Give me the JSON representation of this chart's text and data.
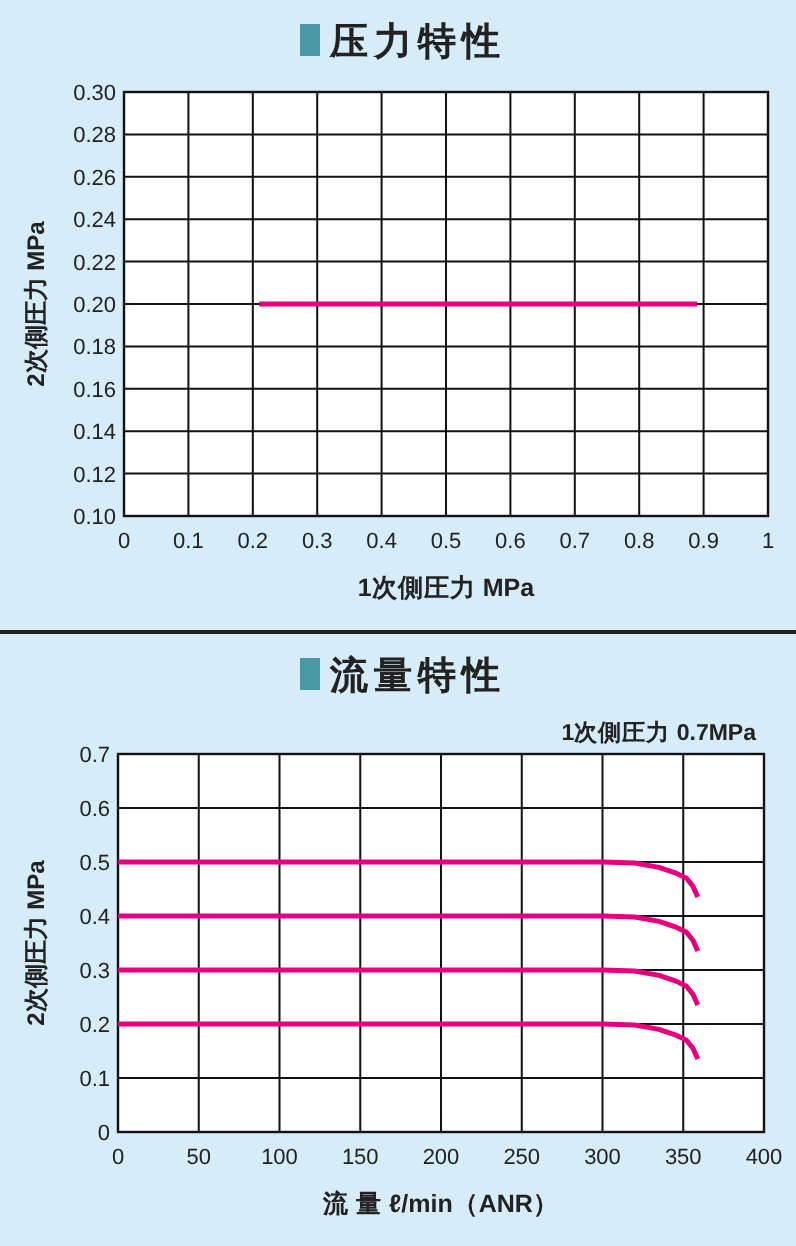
{
  "chart_data": [
    {
      "type": "line",
      "title": "压力特性",
      "xlabel": "1次側圧力  MPa",
      "ylabel": "2次側圧力 MPa",
      "xlim": [
        0,
        1
      ],
      "ylim": [
        0.1,
        0.3
      ],
      "xticks": [
        0,
        0.1,
        0.2,
        0.3,
        0.4,
        0.5,
        0.6,
        0.7,
        0.8,
        0.9,
        1
      ],
      "yticks": [
        {
          "value": 0.1,
          "label": "0.10"
        },
        {
          "value": 0.12,
          "label": "0.12"
        },
        {
          "value": 0.14,
          "label": "0.14"
        },
        {
          "value": 0.16,
          "label": "0.16"
        },
        {
          "value": 0.18,
          "label": "0.18"
        },
        {
          "value": 0.2,
          "label": "0.20"
        },
        {
          "value": 0.22,
          "label": "0.22"
        },
        {
          "value": 0.24,
          "label": "0.24"
        },
        {
          "value": 0.26,
          "label": "0.26"
        },
        {
          "value": 0.28,
          "label": "0.28"
        },
        {
          "value": 0.3,
          "label": "0.30"
        }
      ],
      "grid": true,
      "marker": "none",
      "line_style": "solid",
      "series": [
        {
          "color": "#e6007e",
          "x": [
            0.21,
            0.89
          ],
          "values": [
            0.2,
            0.2
          ]
        }
      ]
    },
    {
      "type": "line",
      "title": "流量特性",
      "subtitle": "1次側圧力 0.7MPa",
      "xlabel": "流 量 ℓ/min（ANR）",
      "ylabel": "2次側圧力 MPa",
      "xlim": [
        0,
        400
      ],
      "ylim": [
        0,
        0.7
      ],
      "xticks": [
        0,
        50,
        100,
        150,
        200,
        250,
        300,
        350,
        400
      ],
      "yticks": [
        0,
        0.1,
        0.2,
        0.3,
        0.4,
        0.5,
        0.6,
        0.7
      ],
      "grid": true,
      "marker": "none",
      "line_style": "solid",
      "series": [
        {
          "color": "#e6007e",
          "x": [
            0,
            300,
            320,
            335,
            345,
            352,
            356,
            359
          ],
          "values": [
            0.5,
            0.5,
            0.498,
            0.49,
            0.48,
            0.47,
            0.455,
            0.435
          ]
        },
        {
          "color": "#e6007e",
          "x": [
            0,
            300,
            320,
            335,
            345,
            352,
            356,
            359
          ],
          "values": [
            0.4,
            0.4,
            0.398,
            0.39,
            0.38,
            0.37,
            0.355,
            0.335
          ]
        },
        {
          "color": "#e6007e",
          "x": [
            0,
            300,
            320,
            335,
            345,
            352,
            356,
            359
          ],
          "values": [
            0.3,
            0.3,
            0.298,
            0.29,
            0.28,
            0.27,
            0.255,
            0.235
          ]
        },
        {
          "color": "#e6007e",
          "x": [
            0,
            300,
            320,
            335,
            345,
            352,
            356,
            359
          ],
          "values": [
            0.2,
            0.2,
            0.198,
            0.19,
            0.18,
            0.17,
            0.155,
            0.135
          ]
        }
      ]
    }
  ]
}
